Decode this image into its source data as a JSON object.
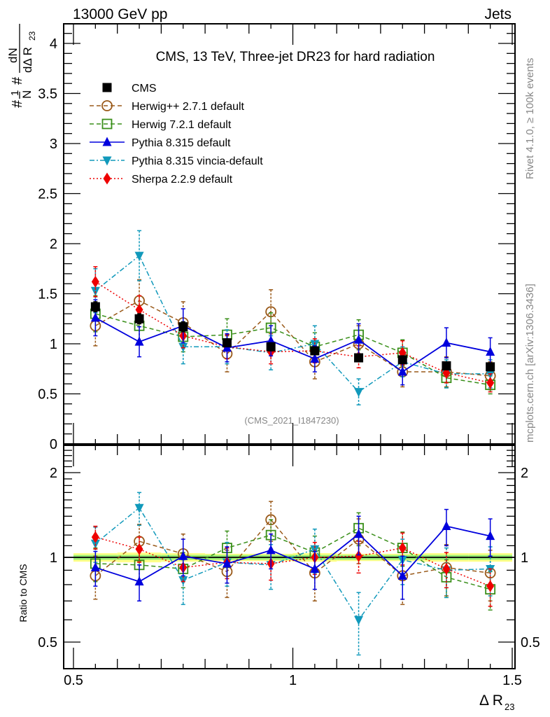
{
  "header": {
    "left_label": "13000 GeV pp",
    "right_label": "Jets"
  },
  "side_labels": {
    "rivet": "Rivet 4.1.0, ≥ 100k events",
    "mcplots": "mcplots.cern.ch [arXiv:1306.3436]"
  },
  "chart_data": [
    {
      "type": "scatter",
      "title": "CMS, 13 TeV, Three-jet DR23 for hard radiation",
      "watermark": "(CMS_2021_I1847230)",
      "xlabel": "Δ R_23",
      "ylabel": "#frac{1}{N} #frac{dN}{dΔ R_{23}}",
      "ylabel_parts": {
        "prefix1": "#",
        "num1": "1",
        "den1": "N",
        "prefix2": "#",
        "num2": "dN",
        "den2": "dΔ R",
        "den2_sub": "23"
      },
      "xlim": [
        0.5,
        1.5
      ],
      "ylim": [
        0,
        4.2
      ],
      "yticks": [
        {
          "v": 0,
          "label": "0"
        },
        {
          "v": 0.5,
          "label": "0.5"
        },
        {
          "v": 1,
          "label": "1"
        },
        {
          "v": 1.5,
          "label": "1.5"
        },
        {
          "v": 2,
          "label": "2"
        },
        {
          "v": 2.5,
          "label": "2.5"
        },
        {
          "v": 3,
          "label": "3"
        },
        {
          "v": 3.5,
          "label": "3.5"
        },
        {
          "v": 4,
          "label": "4"
        }
      ],
      "legend_position": "top-left",
      "x": [
        0.55,
        0.65,
        0.75,
        0.85,
        0.95,
        1.05,
        1.15,
        1.25,
        1.35,
        1.45
      ],
      "series": [
        {
          "name": "CMS",
          "color": "#000000",
          "marker": "square-filled",
          "line": "none",
          "values": [
            1.37,
            1.25,
            1.17,
            1.01,
            0.97,
            0.93,
            0.86,
            0.84,
            0.78,
            0.77
          ],
          "errors": [
            0.05,
            0.05,
            0.05,
            0.04,
            0.04,
            0.04,
            0.03,
            0.03,
            0.03,
            0.03
          ]
        },
        {
          "name": "Herwig++ 2.7.1 default",
          "color": "#9a5a1a",
          "marker": "circle-open",
          "line": "dashed",
          "values": [
            1.18,
            1.43,
            1.21,
            0.9,
            1.32,
            0.82,
            1.0,
            0.72,
            0.72,
            0.68
          ],
          "errors": [
            0.2,
            0.21,
            0.21,
            0.18,
            0.22,
            0.17,
            0.18,
            0.15,
            0.15,
            0.14
          ]
        },
        {
          "name": "Herwig 7.2.1 default",
          "color": "#3a8f1a",
          "marker": "square-open",
          "line": "dashed",
          "values": [
            1.3,
            1.18,
            1.07,
            1.09,
            1.16,
            0.97,
            1.09,
            0.91,
            0.66,
            0.59
          ],
          "errors": [
            0.18,
            0.17,
            0.15,
            0.16,
            0.15,
            0.14,
            0.15,
            0.13,
            0.1,
            0.09
          ]
        },
        {
          "name": "Pythia 8.315 default",
          "color": "#0000dd",
          "marker": "triangle-up-filled",
          "line": "solid",
          "values": [
            1.26,
            1.02,
            1.18,
            0.96,
            1.03,
            0.85,
            1.04,
            0.72,
            1.01,
            0.92
          ],
          "errors": [
            0.18,
            0.15,
            0.17,
            0.14,
            0.15,
            0.13,
            0.16,
            0.13,
            0.15,
            0.14
          ]
        },
        {
          "name": "Pythia 8.315 vincia-default",
          "color": "#1199bb",
          "marker": "triangle-down-filled",
          "line": "dashdot",
          "values": [
            1.53,
            1.88,
            0.97,
            0.97,
            0.91,
            1.0,
            0.52,
            0.82,
            0.7,
            0.7
          ],
          "errors": [
            0.22,
            0.25,
            0.17,
            0.17,
            0.17,
            0.18,
            0.13,
            0.15,
            0.14,
            0.14
          ]
        },
        {
          "name": "Sherpa 2.2.9 default",
          "color": "#ee0000",
          "marker": "diamond-filled",
          "line": "dotted",
          "values": [
            1.62,
            1.34,
            1.08,
            0.97,
            0.92,
            0.93,
            0.87,
            0.91,
            0.71,
            0.61
          ],
          "errors": [
            0.15,
            0.14,
            0.12,
            0.12,
            0.12,
            0.12,
            0.11,
            0.12,
            0.1,
            0.09
          ]
        }
      ]
    },
    {
      "type": "scatter",
      "title": "",
      "ylabel": "Ratio to CMS",
      "xlabel": "Δ R_23",
      "yscale": "log",
      "xlim": [
        0.5,
        1.5
      ],
      "ylim": [
        0.4,
        2.5
      ],
      "yticks": [
        {
          "v": 0.5,
          "label": "0.5"
        },
        {
          "v": 1,
          "label": "1"
        },
        {
          "v": 2,
          "label": "2"
        }
      ],
      "xticks": [
        {
          "v": 0.5,
          "label": "0.5"
        },
        {
          "v": 1,
          "label": "1"
        },
        {
          "v": 1.5,
          "label": "1.5"
        }
      ],
      "reference_band": {
        "value": 1,
        "inner_color": "#99ee77",
        "outer_color": "#ffff88",
        "inner_halfwidth": [
          0.02,
          0.02,
          0.02,
          0.02,
          0.02,
          0.02,
          0.02,
          0.02,
          0.02,
          0.02
        ],
        "outer_halfwidth": [
          0.035,
          0.04,
          0.035,
          0.03,
          0.03,
          0.035,
          0.03,
          0.03,
          0.035,
          0.035
        ]
      },
      "x": [
        0.55,
        0.65,
        0.75,
        0.85,
        0.95,
        1.05,
        1.15,
        1.25,
        1.35,
        1.45
      ],
      "series": [
        {
          "name": "Herwig++ 2.7.1 default",
          "values": [
            0.86,
            1.14,
            1.03,
            0.89,
            1.36,
            0.88,
            1.16,
            0.86,
            0.92,
            0.88
          ],
          "errors": [
            0.15,
            0.17,
            0.18,
            0.17,
            0.22,
            0.18,
            0.21,
            0.18,
            0.19,
            0.18
          ]
        },
        {
          "name": "Herwig 7.2.1 default",
          "values": [
            0.95,
            0.94,
            0.91,
            1.08,
            1.2,
            1.04,
            1.27,
            1.08,
            0.85,
            0.77
          ],
          "errors": [
            0.13,
            0.14,
            0.13,
            0.16,
            0.16,
            0.15,
            0.17,
            0.15,
            0.13,
            0.12
          ]
        },
        {
          "name": "Pythia 8.315 default",
          "values": [
            0.92,
            0.82,
            1.01,
            0.95,
            1.06,
            0.91,
            1.21,
            0.86,
            1.29,
            1.19
          ],
          "errors": [
            0.13,
            0.12,
            0.15,
            0.14,
            0.15,
            0.14,
            0.19,
            0.15,
            0.19,
            0.18
          ]
        },
        {
          "name": "Pythia 8.315 vincia-default",
          "values": [
            1.12,
            1.5,
            0.83,
            0.96,
            0.94,
            1.07,
            0.6,
            0.98,
            0.9,
            0.91
          ],
          "errors": [
            0.16,
            0.2,
            0.15,
            0.17,
            0.17,
            0.19,
            0.15,
            0.18,
            0.18,
            0.18
          ]
        },
        {
          "name": "Sherpa 2.2.9 default",
          "values": [
            1.18,
            1.07,
            0.92,
            0.96,
            0.95,
            1.0,
            1.01,
            1.08,
            0.91,
            0.79
          ],
          "errors": [
            0.11,
            0.11,
            0.1,
            0.12,
            0.12,
            0.13,
            0.13,
            0.14,
            0.13,
            0.12
          ]
        }
      ]
    }
  ]
}
